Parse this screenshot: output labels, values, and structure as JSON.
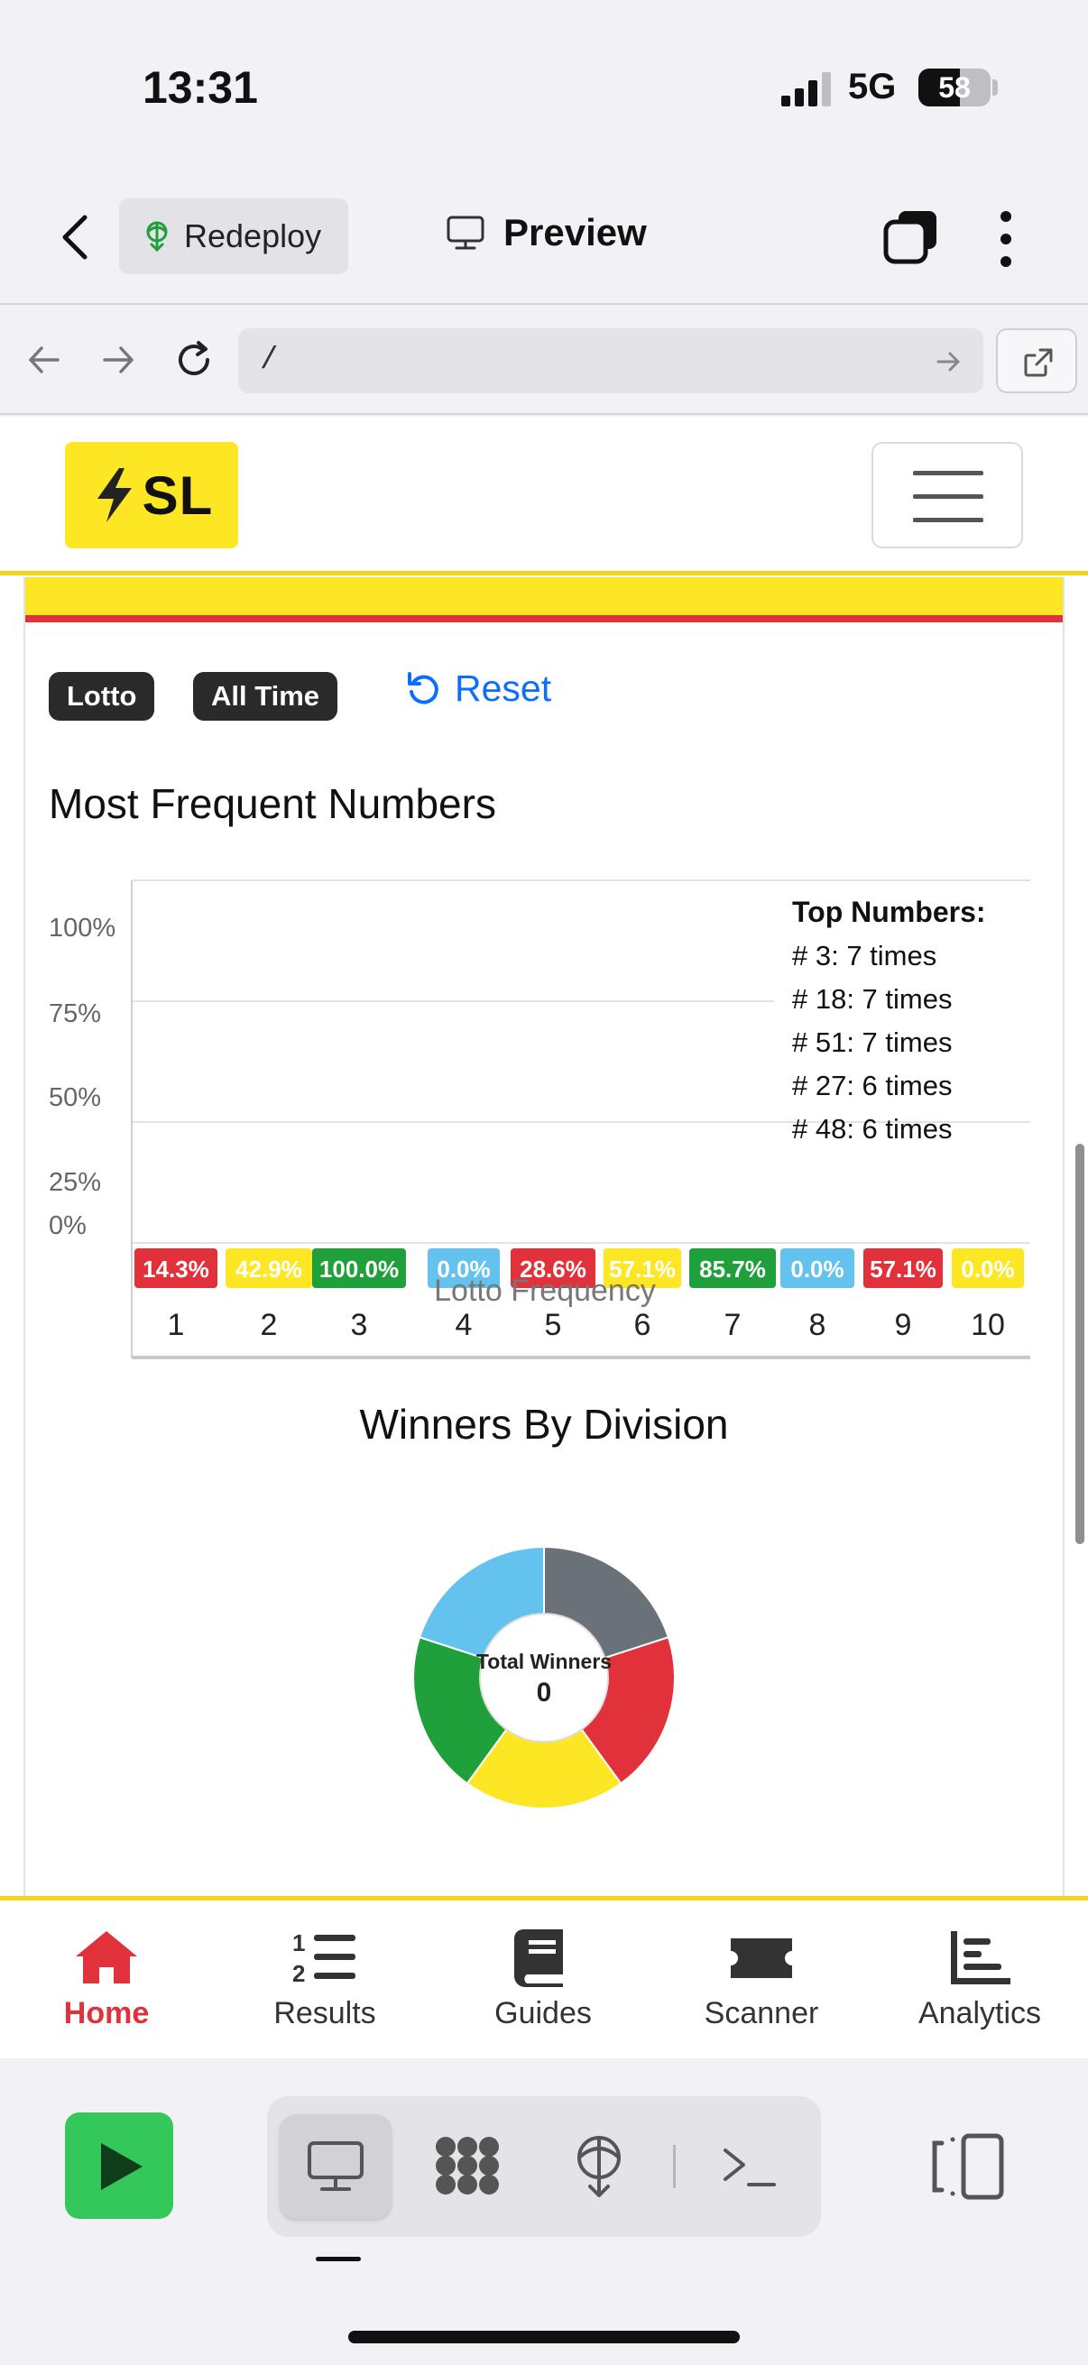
{
  "status_bar": {
    "time": "13:31",
    "network": "5G",
    "battery": "58",
    "battery_level": 0.58
  },
  "replit_top": {
    "redeploy_label": "Redeploy",
    "preview_label": "Preview"
  },
  "url_bar": {
    "value": "/"
  },
  "app": {
    "logo_text": "SL",
    "filters": {
      "game": "Lotto",
      "period": "All Time",
      "reset_label": "Reset"
    },
    "frequency_title": "Most Frequent Numbers",
    "top_numbers": {
      "heading": "Top Numbers:",
      "items": [
        "# 3: 7 times",
        "# 18: 7 times",
        "# 51: 7 times",
        "# 27: 6 times",
        "# 48: 6 times"
      ]
    },
    "pie_title": "Winners By Division",
    "pie_center": {
      "label": "Total Winners",
      "value": "0"
    }
  },
  "chart_data": [
    {
      "type": "bar",
      "series": [
        {
          "name": "Lotto Frequency",
          "values": [
            14.3,
            42.9,
            100.0,
            0.0,
            28.6,
            57.1,
            85.7,
            0.0,
            57.1,
            0.0
          ]
        }
      ],
      "categories": [
        "1",
        "2",
        "3",
        "4",
        "5",
        "6",
        "7",
        "8",
        "9",
        "10"
      ],
      "value_labels": [
        "14.3%",
        "42.9%",
        "100.0%",
        "0.0%",
        "28.6%",
        "57.1%",
        "85.7%",
        "0.0%",
        "57.1%",
        "0.0%"
      ],
      "label_colors": [
        "#e1313a",
        "#fde725",
        "#1fa03a",
        "#63c3ee",
        "#e1313a",
        "#fde725",
        "#1fa03a",
        "#63c3ee",
        "#e1313a",
        "#fde725"
      ],
      "y_ticks": [
        "100%",
        "75%",
        "50%",
        "25%",
        "0%"
      ],
      "ylim": [
        0,
        100
      ],
      "grid": true
    },
    {
      "type": "pie",
      "title": "Winners By Division",
      "slice_colors": [
        "#6b7178",
        "#e1313a",
        "#fde725",
        "#1fa03a",
        "#63c3ee"
      ],
      "slice_values": [
        1,
        1,
        1,
        1,
        1
      ]
    }
  ],
  "bottom_tabs": [
    {
      "label": "Home",
      "icon": "home-icon",
      "active": true
    },
    {
      "label": "Results",
      "icon": "numbered-list-icon",
      "active": false
    },
    {
      "label": "Guides",
      "icon": "book-icon",
      "active": false
    },
    {
      "label": "Scanner",
      "icon": "ticket-icon",
      "active": false
    },
    {
      "label": "Analytics",
      "icon": "bar-chart-icon",
      "active": false
    }
  ],
  "replit_bottom": {
    "icons": [
      "play-icon",
      "monitor-icon",
      "grid-dots-icon",
      "deploy-globe-icon",
      "terminal-icon",
      "split-view-icon"
    ]
  }
}
